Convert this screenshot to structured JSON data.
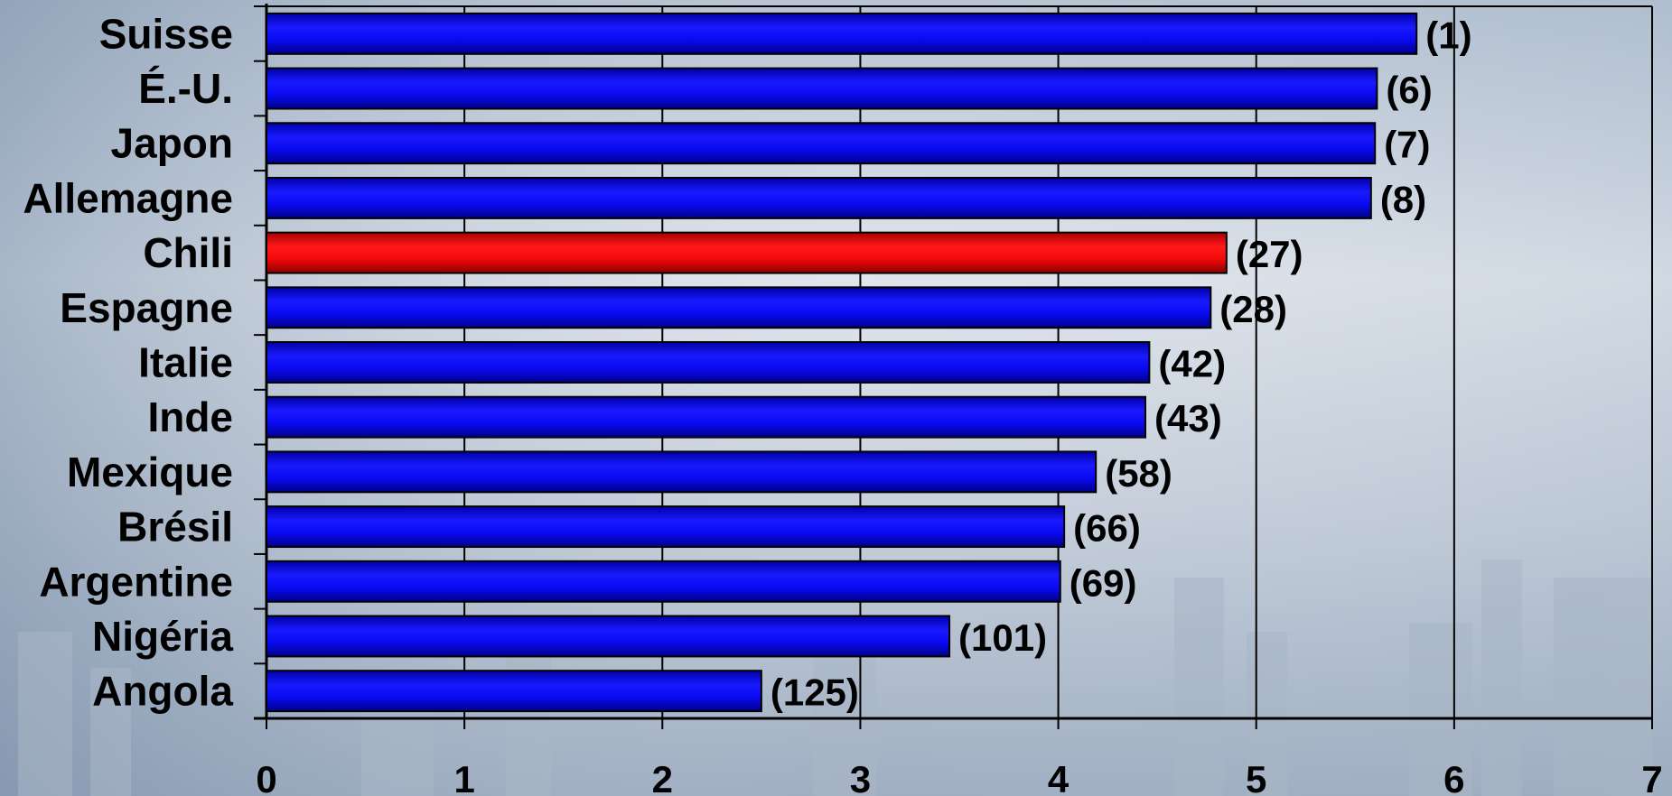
{
  "chart_data": {
    "type": "bar",
    "orientation": "horizontal",
    "categories": [
      "Suisse",
      "É.-U.",
      "Japon",
      "Allemagne",
      "Chili",
      "Espagne",
      "Italie",
      "Inde",
      "Mexique",
      "Brésil",
      "Argentine",
      "Nigéria",
      "Angola"
    ],
    "values": [
      5.81,
      5.61,
      5.6,
      5.58,
      4.85,
      4.77,
      4.46,
      4.44,
      4.19,
      4.03,
      4.01,
      3.45,
      2.5
    ],
    "rank_labels": [
      "(1)",
      "(6)",
      "(7)",
      "(8)",
      "(27)",
      "(28)",
      "(42)",
      "(43)",
      "(58)",
      "(66)",
      "(69)",
      "(101)",
      "(125)"
    ],
    "highlight": "Chili",
    "x_ticks": [
      "0",
      "1",
      "2",
      "3",
      "4",
      "5",
      "6",
      "7"
    ],
    "xlim": [
      0,
      7
    ],
    "grid": "vertical",
    "colors": {
      "bar": "#0000ee",
      "bar_highlight": "#ee0000",
      "bar_outline": "#000000",
      "text": "#000000"
    }
  }
}
